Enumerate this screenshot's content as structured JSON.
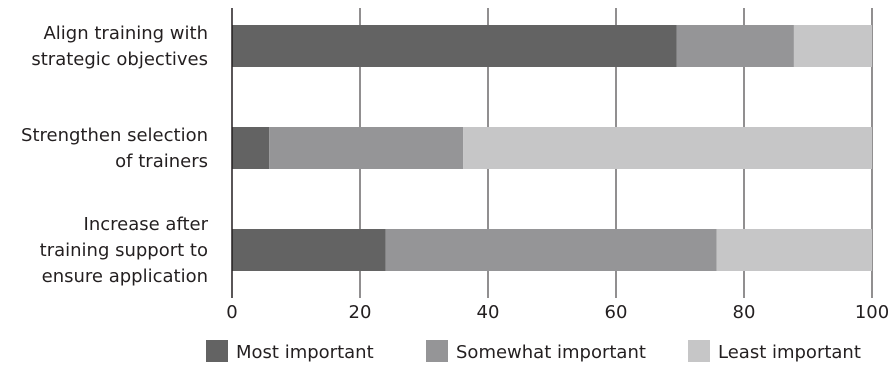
{
  "chart_data": {
    "type": "bar",
    "orientation": "horizontal",
    "stacked": true,
    "categories": [
      [
        "Align training with",
        "strategic objectives"
      ],
      [
        "Strengthen selection",
        "of trainers"
      ],
      [
        "Increase after",
        "training support to",
        "ensure application"
      ]
    ],
    "series": [
      {
        "name": "Most important",
        "values": [
          69.5,
          5.8,
          24.0
        ]
      },
      {
        "name": "Somewhat important",
        "values": [
          18.3,
          30.3,
          51.7
        ]
      },
      {
        "name": "Least important",
        "values": [
          12.2,
          63.9,
          24.3
        ]
      }
    ],
    "colors": [
      "#636363",
      "#959597",
      "#c6c6c7"
    ],
    "xlim": [
      0,
      100
    ],
    "xticks": [
      "0",
      "20",
      "40",
      "60",
      "80",
      "100"
    ],
    "xlabel": "",
    "ylabel": "",
    "title": "",
    "grid": "vertical gridlines",
    "legend_position": "bottom"
  }
}
